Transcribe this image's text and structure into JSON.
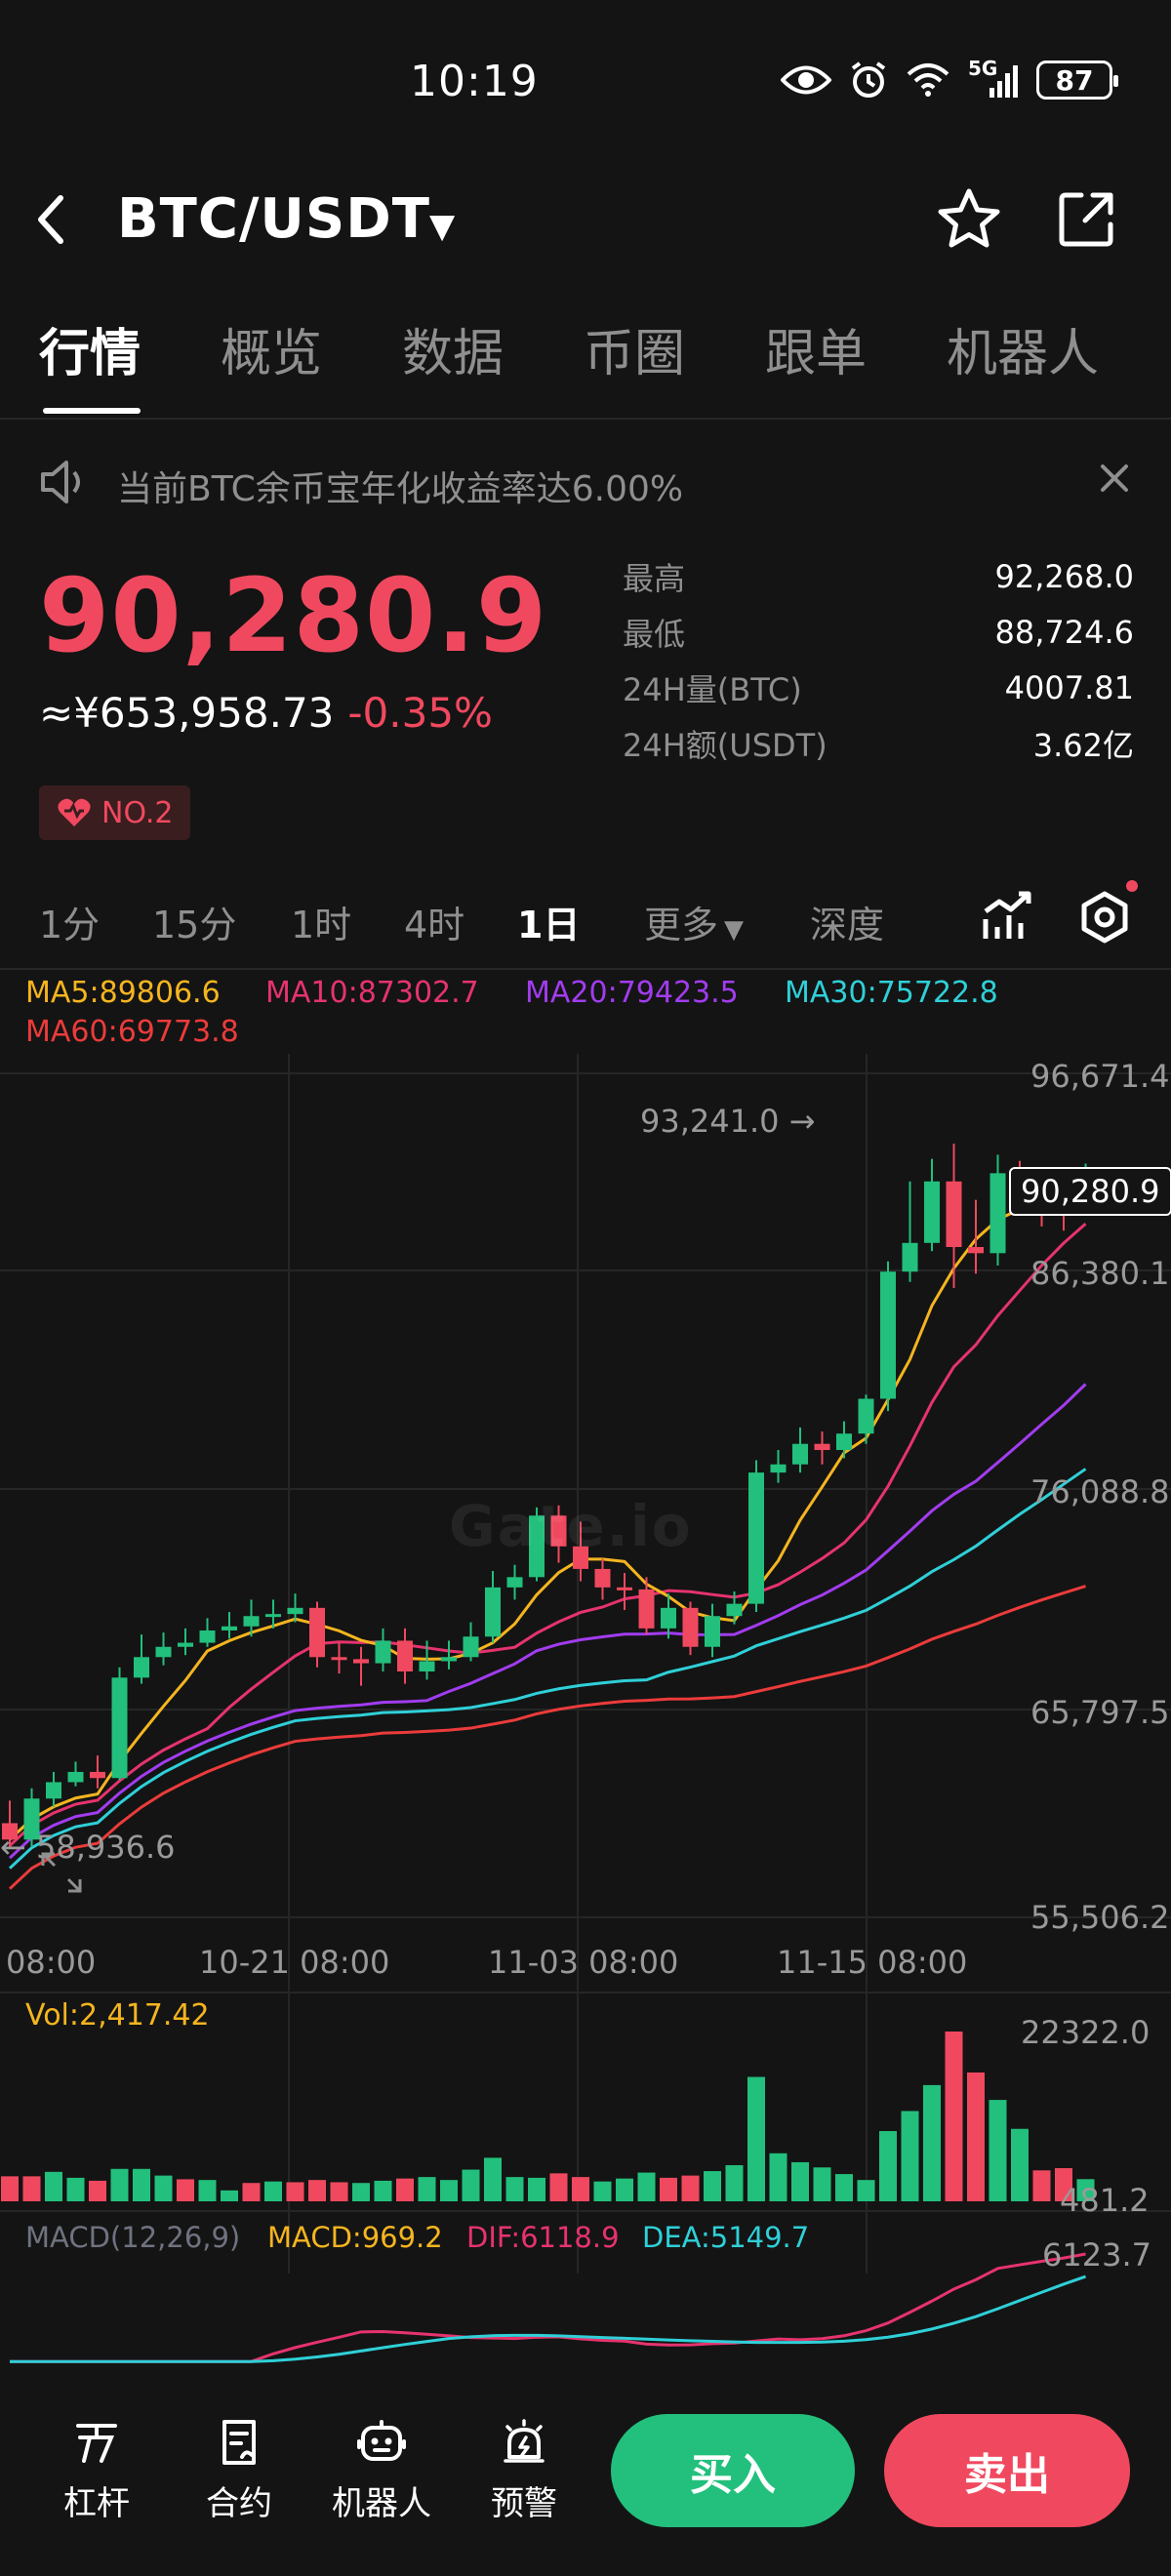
{
  "status_bar": {
    "time": "10:19",
    "network": "5G",
    "battery": "87"
  },
  "header": {
    "pair": "BTC/USDT"
  },
  "tabs": [
    {
      "label": "行情",
      "active": true
    },
    {
      "label": "概览",
      "active": false
    },
    {
      "label": "数据",
      "active": false
    },
    {
      "label": "币圈",
      "active": false
    },
    {
      "label": "跟单",
      "active": false
    },
    {
      "label": "机器人",
      "active": false
    }
  ],
  "notice": {
    "text": "当前BTC余币宝年化收益率达6.00%"
  },
  "price": {
    "last": "90,280.9",
    "cny": "≈¥653,958.73",
    "change": "-0.35%",
    "rank": "NO.2"
  },
  "stats": [
    {
      "label": "最高",
      "value": "92,268.0"
    },
    {
      "label": "最低",
      "value": "88,724.6"
    },
    {
      "label": "24H量(BTC)",
      "value": "4007.81"
    },
    {
      "label": "24H额(USDT)",
      "value": "3.62亿"
    }
  ],
  "intervals": {
    "items": [
      {
        "label": "1分",
        "active": false
      },
      {
        "label": "15分",
        "active": false
      },
      {
        "label": "1时",
        "active": false
      },
      {
        "label": "4时",
        "active": false
      },
      {
        "label": "1日",
        "active": true
      }
    ],
    "more": "更多",
    "depth": "深度"
  },
  "ma_legend": {
    "ma5": "MA5:89806.6",
    "ma10": "MA10:87302.7",
    "ma20": "MA20:79423.5",
    "ma30": "MA30:75722.8",
    "ma60": "MA60:69773.8"
  },
  "colors": {
    "up": "#22c07c",
    "down": "#f0495f",
    "ma5": "#f5b51f",
    "ma10": "#e6336e",
    "ma20": "#a23cf0",
    "ma30": "#2fd0d8",
    "ma60": "#ec3b3b",
    "dif": "#e6336e",
    "dea": "#2fd0d8"
  },
  "chart": {
    "price_axis": [
      "96,671.4",
      "86,380.1",
      "76,088.8",
      "65,797.5",
      "55,506.2"
    ],
    "high_marker": "93,241.0 →",
    "low_marker": "← 58,936.6",
    "current_tag": "90,280.9",
    "watermark": "Gate.io",
    "time_axis": [
      "08:00",
      "10-21 08:00",
      "11-03 08:00",
      "11-15 08:00"
    ],
    "volume_label": "Vol:2,417.42",
    "volume_axis": [
      "22322.0",
      "481.2"
    ],
    "macd_labels": {
      "name": "MACD(12,26,9)",
      "macd": "MACD:969.2",
      "dif": "DIF:6118.9",
      "dea": "DEA:5149.7",
      "axis": "6123.7"
    }
  },
  "chart_data": {
    "type": "candlestick",
    "price_range": [
      55506.2,
      96671.4
    ],
    "candles": [
      [
        60100,
        59300,
        61200,
        58936.6
      ],
      [
        59300,
        61300,
        61800,
        58936.6
      ],
      [
        61300,
        62100,
        62600,
        60900
      ],
      [
        62100,
        62600,
        63100,
        61900
      ],
      [
        62600,
        62300,
        63400,
        61800
      ],
      [
        62300,
        67200,
        67700,
        62200
      ],
      [
        67200,
        68200,
        69300,
        66900
      ],
      [
        68200,
        68700,
        69400,
        67800
      ],
      [
        68700,
        68900,
        69600,
        68300
      ],
      [
        68900,
        69500,
        70100,
        68700
      ],
      [
        69500,
        69700,
        70400,
        69100
      ],
      [
        69700,
        70200,
        71000,
        69200
      ],
      [
        70200,
        70300,
        71000,
        69600
      ],
      [
        70300,
        70600,
        71300,
        69900
      ],
      [
        70600,
        68200,
        70900,
        67700
      ],
      [
        68200,
        68100,
        68900,
        67400
      ],
      [
        68100,
        67900,
        68700,
        66800
      ],
      [
        67900,
        69000,
        69600,
        67500
      ],
      [
        69000,
        67500,
        69600,
        66900
      ],
      [
        67500,
        68000,
        69000,
        67100
      ],
      [
        68000,
        68200,
        69000,
        67600
      ],
      [
        68200,
        69200,
        69900,
        68000
      ],
      [
        69200,
        71600,
        72400,
        68900
      ],
      [
        71600,
        72100,
        72700,
        71000
      ],
      [
        72100,
        75100,
        75500,
        71900
      ],
      [
        75100,
        73600,
        75600,
        72800
      ],
      [
        73600,
        72500,
        74800,
        71900
      ],
      [
        72500,
        71600,
        73000,
        71000
      ],
      [
        71600,
        71500,
        72300,
        70500
      ],
      [
        71500,
        69600,
        72100,
        69300
      ],
      [
        69600,
        70600,
        71300,
        69100
      ],
      [
        70600,
        68700,
        70900,
        68300
      ],
      [
        68700,
        70200,
        70800,
        68200
      ],
      [
        70200,
        70800,
        71400,
        69800
      ],
      [
        70800,
        77200,
        77800,
        70400
      ],
      [
        77200,
        77600,
        78300,
        76700
      ],
      [
        77600,
        78600,
        79400,
        77200
      ],
      [
        78600,
        78300,
        79200,
        77600
      ],
      [
        78300,
        79100,
        79700,
        77900
      ],
      [
        79100,
        80800,
        81000,
        78600
      ],
      [
        80800,
        87000,
        87500,
        80200
      ],
      [
        87000,
        88400,
        91400,
        86500
      ],
      [
        88400,
        91400,
        92500,
        88000
      ],
      [
        91400,
        88200,
        93241,
        86200
      ],
      [
        88200,
        87900,
        90500,
        86900
      ],
      [
        87900,
        91800,
        92700,
        87300
      ],
      [
        91800,
        90900,
        92400,
        90600
      ],
      [
        90900,
        90500,
        91600,
        89200
      ],
      [
        90500,
        90000,
        91400,
        89000
      ],
      [
        90000,
        90280.9,
        92268,
        89800
      ]
    ],
    "volume_range": [
      481.2,
      22322.0
    ],
    "volumes": [
      [
        2800,
        "down"
      ],
      [
        2800,
        "down"
      ],
      [
        3400,
        "up"
      ],
      [
        2600,
        "up"
      ],
      [
        2200,
        "down"
      ],
      [
        3800,
        "up"
      ],
      [
        3800,
        "up"
      ],
      [
        2900,
        "up"
      ],
      [
        2400,
        "down"
      ],
      [
        2300,
        "up"
      ],
      [
        900,
        "up"
      ],
      [
        1900,
        "down"
      ],
      [
        2100,
        "up"
      ],
      [
        2000,
        "down"
      ],
      [
        2300,
        "down"
      ],
      [
        2000,
        "down"
      ],
      [
        1900,
        "up"
      ],
      [
        2200,
        "up"
      ],
      [
        2500,
        "down"
      ],
      [
        2700,
        "up"
      ],
      [
        2300,
        "up"
      ],
      [
        3700,
        "up"
      ],
      [
        5300,
        "up"
      ],
      [
        2700,
        "up"
      ],
      [
        2600,
        "up"
      ],
      [
        3200,
        "down"
      ],
      [
        2700,
        "down"
      ],
      [
        2100,
        "up"
      ],
      [
        2500,
        "up"
      ],
      [
        3300,
        "up"
      ],
      [
        2600,
        "down"
      ],
      [
        2900,
        "down"
      ],
      [
        3500,
        "up"
      ],
      [
        4300,
        "up"
      ],
      [
        16200,
        "up"
      ],
      [
        5900,
        "up"
      ],
      [
        4700,
        "up"
      ],
      [
        4000,
        "up"
      ],
      [
        3100,
        "up"
      ],
      [
        2300,
        "up"
      ],
      [
        8900,
        "up"
      ],
      [
        11600,
        "up"
      ],
      [
        15100,
        "up"
      ],
      [
        22322,
        "down"
      ],
      [
        16800,
        "down"
      ],
      [
        13100,
        "up"
      ],
      [
        9200,
        "up"
      ],
      [
        3600,
        "down"
      ],
      [
        3900,
        "down"
      ],
      [
        2417.42,
        "up"
      ]
    ],
    "ma5_last": 89806.6,
    "ma10_last": 87302.7,
    "ma20_last": 79423.5,
    "ma30_last": 75722.8,
    "ma60_last": 69773.8,
    "macd_range_top": 6123.7
  },
  "bottom_nav": [
    {
      "label": "杠杆",
      "icon": "leverage-icon"
    },
    {
      "label": "合约",
      "icon": "contract-icon"
    },
    {
      "label": "机器人",
      "icon": "robot-icon"
    },
    {
      "label": "预警",
      "icon": "alert-icon"
    }
  ],
  "actions": {
    "buy": "买入",
    "sell": "卖出"
  }
}
